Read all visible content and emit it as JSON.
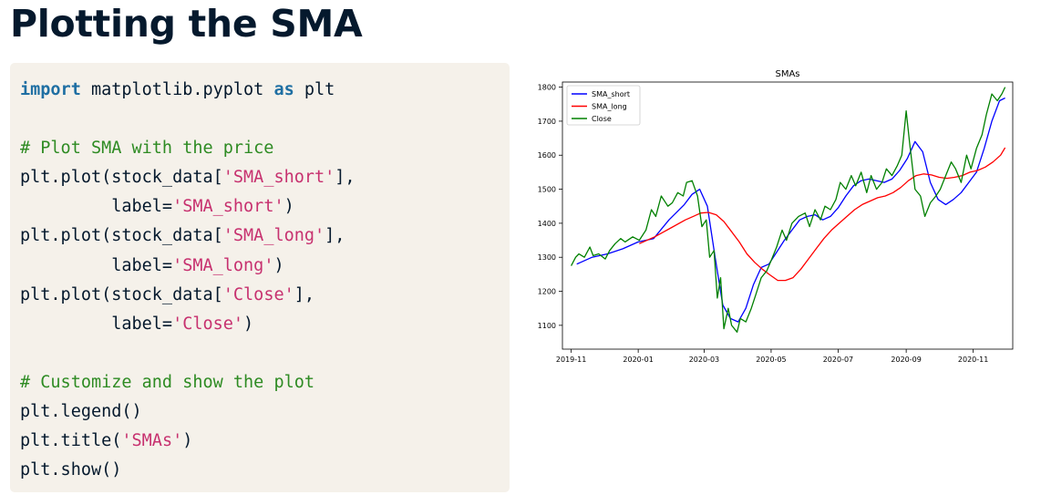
{
  "slide": {
    "title": "Plotting the SMA"
  },
  "code": {
    "lines": [
      [
        {
          "t": "import",
          "c": "kw"
        },
        {
          "t": " matplotlib.pyplot ",
          "c": ""
        },
        {
          "t": "as",
          "c": "kw"
        },
        {
          "t": " plt",
          "c": ""
        }
      ],
      [],
      [
        {
          "t": "# Plot SMA with the price",
          "c": "cm"
        }
      ],
      [
        {
          "t": "plt.plot(stock_data[",
          "c": ""
        },
        {
          "t": "'SMA_short'",
          "c": "st"
        },
        {
          "t": "],",
          "c": ""
        }
      ],
      [
        {
          "t": "         label=",
          "c": ""
        },
        {
          "t": "'SMA_short'",
          "c": "st"
        },
        {
          "t": ")",
          "c": ""
        }
      ],
      [
        {
          "t": "plt.plot(stock_data[",
          "c": ""
        },
        {
          "t": "'SMA_long'",
          "c": "st"
        },
        {
          "t": "],",
          "c": ""
        }
      ],
      [
        {
          "t": "         label=",
          "c": ""
        },
        {
          "t": "'SMA_long'",
          "c": "st"
        },
        {
          "t": ")",
          "c": ""
        }
      ],
      [
        {
          "t": "plt.plot(stock_data[",
          "c": ""
        },
        {
          "t": "'Close'",
          "c": "st"
        },
        {
          "t": "],",
          "c": ""
        }
      ],
      [
        {
          "t": "         label=",
          "c": ""
        },
        {
          "t": "'Close'",
          "c": "st"
        },
        {
          "t": ")",
          "c": ""
        }
      ],
      [],
      [
        {
          "t": "# Customize and show the plot",
          "c": "cm"
        }
      ],
      [
        {
          "t": "plt.legend()",
          "c": ""
        }
      ],
      [
        {
          "t": "plt.title(",
          "c": ""
        },
        {
          "t": "'SMAs'",
          "c": "st"
        },
        {
          "t": ")",
          "c": ""
        }
      ],
      [
        {
          "t": "plt.show()",
          "c": ""
        }
      ]
    ]
  },
  "chart_data": {
    "type": "line",
    "title": "SMAs",
    "xlabel": "",
    "ylabel": "",
    "x_tick_labels": [
      "2019-11",
      "2020-01",
      "2020-03",
      "2020-05",
      "2020-07",
      "2020-09",
      "2020-11"
    ],
    "y_ticks": [
      1100,
      1200,
      1300,
      1400,
      1500,
      1600,
      1700,
      1800
    ],
    "ylim": [
      1030,
      1815
    ],
    "legend": "top-left",
    "grid": false,
    "series": [
      {
        "name": "SMA_short",
        "color": "#0000ff",
        "x": [
          "2019-11-06",
          "2019-11-20",
          "2019-12-04",
          "2019-12-18",
          "2020-01-01",
          "2020-01-15",
          "2020-01-29",
          "2020-02-12",
          "2020-02-19",
          "2020-02-26",
          "2020-03-04",
          "2020-03-11",
          "2020-03-18",
          "2020-03-25",
          "2020-04-01",
          "2020-04-08",
          "2020-04-15",
          "2020-04-22",
          "2020-04-29",
          "2020-05-06",
          "2020-05-13",
          "2020-05-20",
          "2020-05-27",
          "2020-06-03",
          "2020-06-10",
          "2020-06-17",
          "2020-06-24",
          "2020-07-01",
          "2020-07-08",
          "2020-07-15",
          "2020-07-22",
          "2020-07-29",
          "2020-08-05",
          "2020-08-12",
          "2020-08-19",
          "2020-08-26",
          "2020-09-02",
          "2020-09-09",
          "2020-09-16",
          "2020-09-23",
          "2020-09-30",
          "2020-10-07",
          "2020-10-14",
          "2020-10-21",
          "2020-10-28",
          "2020-11-04",
          "2020-11-11",
          "2020-11-18",
          "2020-11-25",
          "2020-11-30"
        ],
        "values": [
          1280,
          1300,
          1310,
          1325,
          1345,
          1355,
          1410,
          1455,
          1485,
          1500,
          1450,
          1300,
          1160,
          1120,
          1110,
          1150,
          1220,
          1270,
          1280,
          1315,
          1350,
          1380,
          1410,
          1420,
          1425,
          1410,
          1420,
          1445,
          1480,
          1510,
          1525,
          1530,
          1525,
          1520,
          1530,
          1555,
          1590,
          1640,
          1610,
          1520,
          1470,
          1455,
          1470,
          1490,
          1520,
          1550,
          1620,
          1700,
          1760,
          1768
        ]
      },
      {
        "name": "SMA_long",
        "color": "#ff0000",
        "x": [
          "2020-01-02",
          "2020-01-16",
          "2020-01-30",
          "2020-02-13",
          "2020-02-27",
          "2020-03-05",
          "2020-03-12",
          "2020-03-19",
          "2020-03-26",
          "2020-04-02",
          "2020-04-09",
          "2020-04-16",
          "2020-04-23",
          "2020-04-30",
          "2020-05-07",
          "2020-05-14",
          "2020-05-21",
          "2020-05-28",
          "2020-06-04",
          "2020-06-11",
          "2020-06-18",
          "2020-06-25",
          "2020-07-02",
          "2020-07-09",
          "2020-07-16",
          "2020-07-23",
          "2020-07-30",
          "2020-08-06",
          "2020-08-13",
          "2020-08-20",
          "2020-08-27",
          "2020-09-03",
          "2020-09-10",
          "2020-09-17",
          "2020-09-24",
          "2020-10-01",
          "2020-10-08",
          "2020-10-15",
          "2020-10-22",
          "2020-10-29",
          "2020-11-05",
          "2020-11-12",
          "2020-11-19",
          "2020-11-26",
          "2020-11-30"
        ],
        "values": [
          1340,
          1360,
          1385,
          1410,
          1430,
          1432,
          1425,
          1405,
          1375,
          1345,
          1310,
          1285,
          1265,
          1248,
          1232,
          1232,
          1240,
          1265,
          1295,
          1325,
          1355,
          1380,
          1400,
          1420,
          1440,
          1455,
          1465,
          1475,
          1480,
          1490,
          1505,
          1525,
          1540,
          1545,
          1542,
          1535,
          1532,
          1535,
          1540,
          1550,
          1555,
          1565,
          1580,
          1600,
          1622
        ]
      },
      {
        "name": "Close",
        "color": "#008000",
        "x": [
          "2019-11-01",
          "2019-11-05",
          "2019-11-08",
          "2019-11-13",
          "2019-11-18",
          "2019-11-21",
          "2019-11-26",
          "2019-12-02",
          "2019-12-06",
          "2019-12-11",
          "2019-12-16",
          "2019-12-20",
          "2019-12-27",
          "2020-01-02",
          "2020-01-08",
          "2020-01-13",
          "2020-01-17",
          "2020-01-22",
          "2020-01-28",
          "2020-02-01",
          "2020-02-06",
          "2020-02-11",
          "2020-02-14",
          "2020-02-19",
          "2020-02-24",
          "2020-02-28",
          "2020-03-03",
          "2020-03-06",
          "2020-03-10",
          "2020-03-13",
          "2020-03-16",
          "2020-03-19",
          "2020-03-23",
          "2020-03-26",
          "2020-03-31",
          "2020-04-03",
          "2020-04-08",
          "2020-04-13",
          "2020-04-17",
          "2020-04-22",
          "2020-04-27",
          "2020-05-01",
          "2020-05-06",
          "2020-05-11",
          "2020-05-15",
          "2020-05-20",
          "2020-05-26",
          "2020-06-01",
          "2020-06-05",
          "2020-06-10",
          "2020-06-15",
          "2020-06-19",
          "2020-06-24",
          "2020-06-29",
          "2020-07-03",
          "2020-07-08",
          "2020-07-13",
          "2020-07-17",
          "2020-07-22",
          "2020-07-27",
          "2020-07-31",
          "2020-08-05",
          "2020-08-10",
          "2020-08-14",
          "2020-08-19",
          "2020-08-24",
          "2020-08-28",
          "2020-09-01",
          "2020-09-04",
          "2020-09-09",
          "2020-09-14",
          "2020-09-18",
          "2020-09-23",
          "2020-09-28",
          "2020-10-02",
          "2020-10-07",
          "2020-10-12",
          "2020-10-16",
          "2020-10-21",
          "2020-10-26",
          "2020-10-30",
          "2020-11-04",
          "2020-11-09",
          "2020-11-13",
          "2020-11-18",
          "2020-11-23",
          "2020-11-27",
          "2020-11-30"
        ],
        "values": [
          1275,
          1300,
          1310,
          1300,
          1330,
          1305,
          1310,
          1295,
          1320,
          1340,
          1355,
          1345,
          1360,
          1350,
          1380,
          1440,
          1420,
          1480,
          1450,
          1460,
          1490,
          1480,
          1520,
          1525,
          1480,
          1390,
          1410,
          1300,
          1320,
          1180,
          1240,
          1090,
          1150,
          1100,
          1080,
          1120,
          1110,
          1150,
          1190,
          1240,
          1260,
          1290,
          1330,
          1380,
          1350,
          1400,
          1420,
          1430,
          1390,
          1440,
          1410,
          1450,
          1440,
          1470,
          1520,
          1500,
          1540,
          1510,
          1550,
          1490,
          1540,
          1500,
          1520,
          1560,
          1540,
          1570,
          1600,
          1730,
          1640,
          1500,
          1480,
          1420,
          1460,
          1480,
          1500,
          1540,
          1580,
          1560,
          1520,
          1600,
          1560,
          1620,
          1660,
          1720,
          1780,
          1760,
          1780,
          1800
        ]
      }
    ]
  }
}
